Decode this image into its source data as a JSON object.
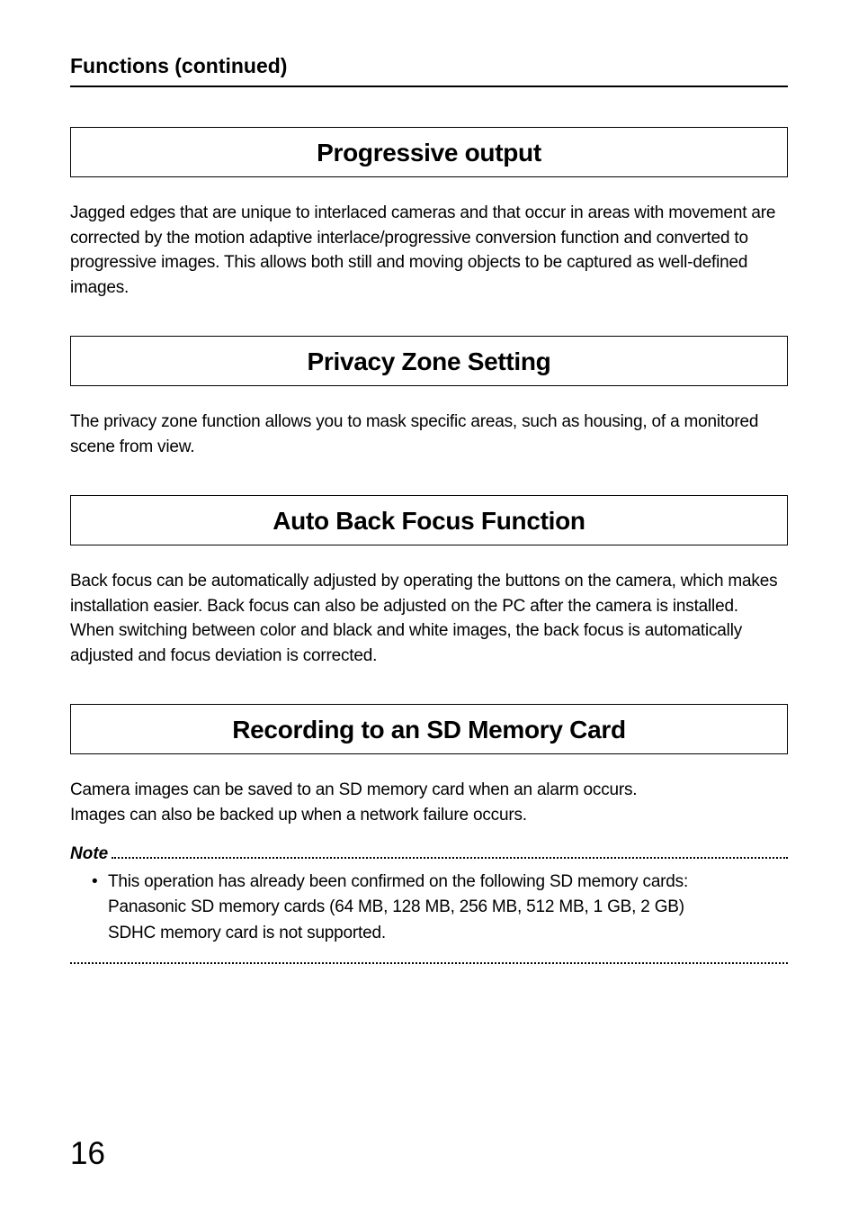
{
  "header": {
    "title": "Functions (continued)"
  },
  "sections": [
    {
      "title": "Progressive output",
      "body": "Jagged edges that are unique to interlaced cameras and that occur in areas with movement are corrected by the motion adaptive interlace/progressive conversion function and converted to progressive images. This allows both still and moving objects to be captured as well-defined images."
    },
    {
      "title": "Privacy Zone Setting",
      "body": "The privacy zone function allows you to mask specific areas, such as housing, of a monitored scene from view."
    },
    {
      "title": "Auto Back Focus Function",
      "body": "Back focus can be automatically adjusted by operating the buttons on the camera, which makes installation easier. Back focus can also be adjusted on the PC after the camera is installed.\nWhen switching between color and black and white images, the back focus is automatically adjusted and focus deviation is corrected."
    },
    {
      "title": "Recording to an SD Memory Card",
      "body": "Camera images can be saved to an SD memory card when an alarm occurs.\nImages can also be backed up when a network failure occurs."
    }
  ],
  "note": {
    "label": "Note",
    "bullet": {
      "marker": "•",
      "line1": "This operation has already been confirmed on the following SD memory cards:",
      "line2": "Panasonic SD memory cards (64 MB, 128 MB, 256 MB, 512 MB, 1 GB, 2 GB)",
      "line3": "SDHC memory card is not supported."
    }
  },
  "pageNumber": "16",
  "styling": {
    "text_color": "#000000",
    "background": "#ffffff",
    "border_color": "#000000",
    "body_fontsize": 19,
    "title_fontsize": 28,
    "header_fontsize": 23,
    "pagenum_fontsize": 35
  }
}
